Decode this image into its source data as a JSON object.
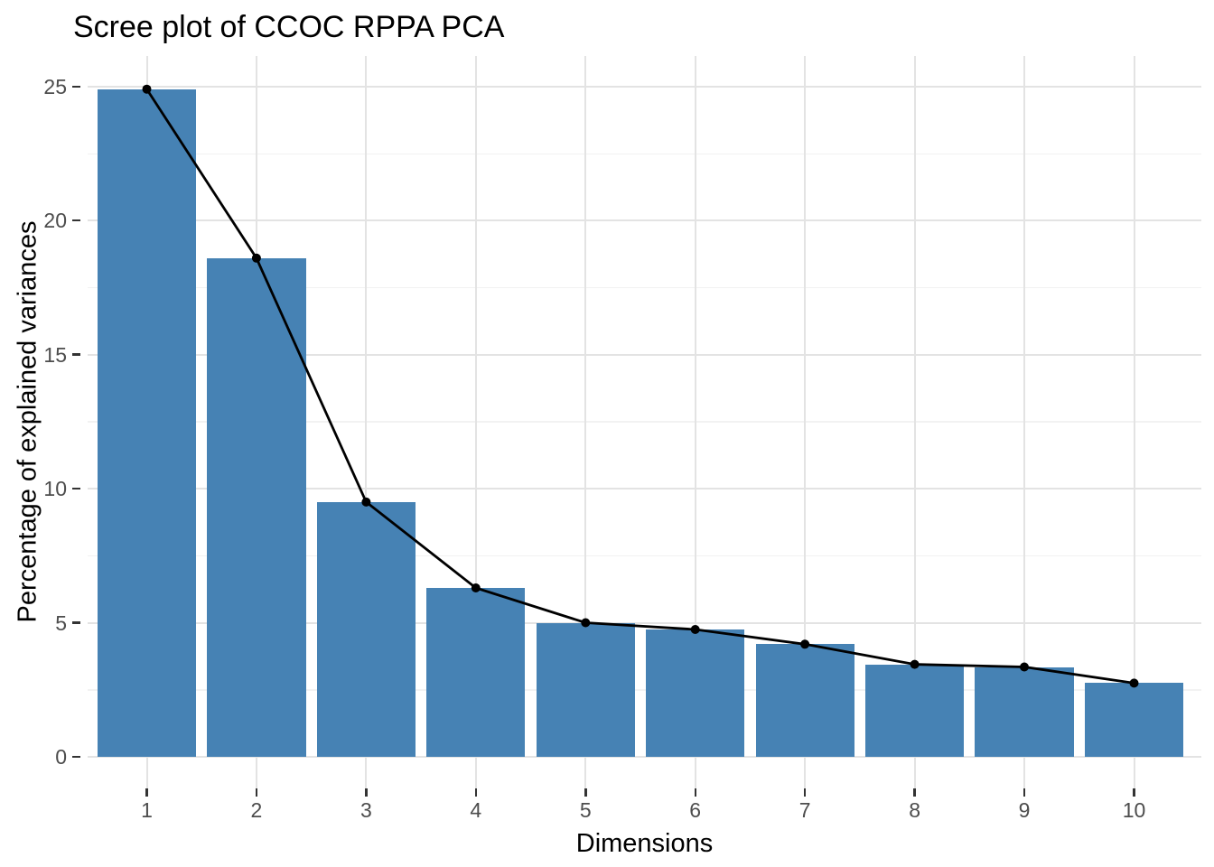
{
  "title": "Scree plot of CCOC RPPA PCA",
  "chart_data": {
    "type": "bar",
    "overlay": "line+points",
    "title": "Scree plot of CCOC RPPA PCA",
    "xlabel": "Dimensions",
    "ylabel": "Percentage of explained variances",
    "categories": [
      "1",
      "2",
      "3",
      "4",
      "5",
      "6",
      "7",
      "8",
      "9",
      "10"
    ],
    "values": [
      24.9,
      18.6,
      9.5,
      6.3,
      5.0,
      4.75,
      4.2,
      3.45,
      3.35,
      2.75
    ],
    "series_name": "Percentage of explained variances",
    "ylim": [
      0,
      26.2
    ],
    "yticks": [
      0,
      5,
      10,
      15,
      20,
      25
    ],
    "y_minor_ticks": [
      2.5,
      7.5,
      12.5,
      17.5,
      22.5
    ],
    "grid": "horizontal major+minor, vertical major",
    "legend": "none",
    "colors": {
      "bar_fill": "#4682B4",
      "line": "#000000",
      "point": "#000000",
      "grid_major": "#e3e3e3",
      "grid_minor": "#f2f2f2",
      "tick_mark": "#333333",
      "tick_label": "#4d4d4d",
      "axis_title": "#000000",
      "title": "#000000",
      "background": "#ffffff"
    }
  }
}
